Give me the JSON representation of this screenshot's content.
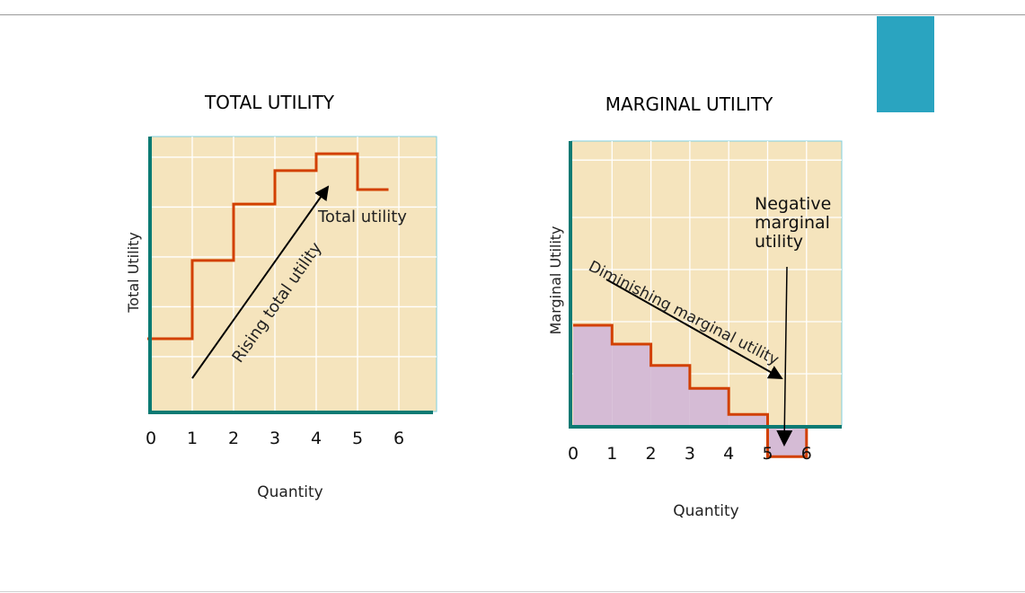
{
  "accent_color": "#2aa4c0",
  "chart_data": [
    {
      "type": "line",
      "title": "TOTAL UTILITY",
      "xlabel": "Quantity",
      "ylabel": "Total Utility",
      "step": true,
      "x_ticks": [
        "0",
        "1",
        "2",
        "3",
        "4",
        "5",
        "6"
      ],
      "xlim": [
        0,
        6.8
      ],
      "ylim": [
        0,
        5.5
      ],
      "grid": true,
      "series": [
        {
          "x": [
            0,
            1,
            2,
            3,
            4,
            5,
            5.75
          ],
          "y": [
            1.46,
            3.03,
            4.16,
            4.83,
            5.17,
            4.45,
            4.45
          ],
          "color": "#d24000"
        }
      ],
      "annotations": {
        "curve_label": "Total utility",
        "arrow_label": "Rising total utility"
      },
      "background": "#f5e4bd",
      "axis_color": "#0a7a73"
    },
    {
      "type": "bar",
      "title": "MARGINAL UTILITY",
      "xlabel": "Quantity",
      "ylabel": "Marginal Utility",
      "step": true,
      "x_ticks": [
        "0",
        "1",
        "2",
        "3",
        "4",
        "5",
        "6"
      ],
      "xlim": [
        0,
        6.9
      ],
      "ylim": [
        -0.6,
        5.5
      ],
      "grid": true,
      "series": [
        {
          "x": [
            0,
            1,
            2,
            3,
            4,
            5
          ],
          "values": [
            1.93,
            1.57,
            1.16,
            0.72,
            0.22,
            -0.59
          ],
          "color": "#d24000",
          "fill": "#d5bbd5"
        }
      ],
      "annotations": {
        "arrow_label": "Diminishing marginal utility",
        "negative_label": [
          "Negative",
          "marginal",
          "utility"
        ]
      },
      "background": "#f5e4bd",
      "axis_color": "#0a7a73"
    }
  ]
}
